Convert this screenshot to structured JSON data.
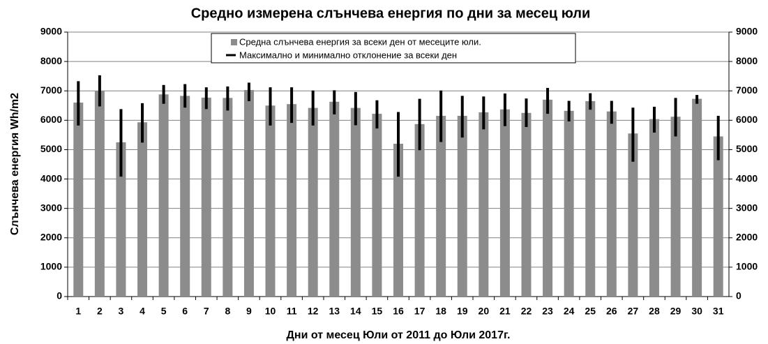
{
  "chart_data": {
    "type": "bar",
    "title": "Средно измерена слънчева енергия по дни за месец юли",
    "x_label": "Дни от месец Юли от 2011 до Юли 2017г.",
    "y_label": "Слънчева енергия  Wh/m2",
    "categories": [
      "1",
      "2",
      "3",
      "4",
      "5",
      "6",
      "7",
      "8",
      "9",
      "10",
      "11",
      "12",
      "13",
      "14",
      "15",
      "16",
      "17",
      "18",
      "19",
      "20",
      "21",
      "22",
      "23",
      "24",
      "25",
      "26",
      "27",
      "28",
      "29",
      "30",
      "31"
    ],
    "series": [
      {
        "name": "Средна слънчева енергия за всеки ден от месеците юли.",
        "color": "#8c8c8c",
        "values": [
          6600,
          7000,
          5250,
          5930,
          6880,
          6830,
          6770,
          6760,
          7030,
          6500,
          6550,
          6420,
          6630,
          6420,
          6220,
          5200,
          5870,
          6150,
          6150,
          6270,
          6370,
          6250,
          6700,
          6320,
          6650,
          6300,
          5550,
          6040,
          6120,
          6730,
          5450
        ]
      },
      {
        "name": "Максимално и минимално отклонение за всеки ден",
        "color": "#000000",
        "high": [
          7330,
          7530,
          6380,
          6580,
          7200,
          7230,
          7120,
          7150,
          7280,
          7120,
          7120,
          7010,
          7020,
          6960,
          6680,
          6280,
          6730,
          7010,
          6830,
          6810,
          6910,
          6740,
          7100,
          6660,
          6920,
          6660,
          6430,
          6460,
          6760,
          6860,
          6150
        ],
        "low": [
          5820,
          6470,
          4080,
          5240,
          6560,
          6430,
          6380,
          6330,
          6650,
          5820,
          5910,
          5820,
          6200,
          5830,
          5720,
          4080,
          4980,
          5260,
          5410,
          5690,
          5800,
          5770,
          6220,
          5960,
          6360,
          5880,
          4590,
          5580,
          5450,
          6560,
          4640
        ]
      }
    ],
    "ylim": [
      0,
      9000
    ],
    "yticks": [
      0,
      1000,
      2000,
      3000,
      4000,
      5000,
      6000,
      7000,
      8000,
      9000
    ],
    "y2lim": [
      0,
      9000
    ],
    "y2ticks": [
      0,
      1000,
      2000,
      3000,
      4000,
      5000,
      6000,
      7000,
      8000,
      9000
    ],
    "grid": true
  }
}
